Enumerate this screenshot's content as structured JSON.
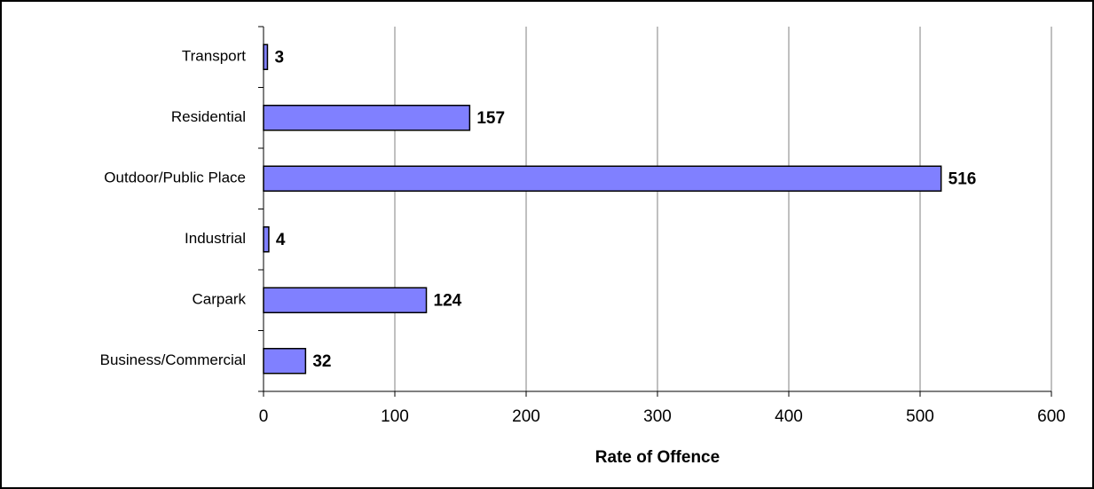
{
  "chart_data": {
    "type": "barh",
    "x_label": "Rate of Offence",
    "categories": [
      "Transport",
      "Residential",
      "Outdoor/Public Place",
      "Industrial",
      "Carpark",
      "Business/Commercial"
    ],
    "values": [
      3,
      157,
      516,
      4,
      124,
      32
    ],
    "color": "#8080ff",
    "xlim": [
      0,
      600
    ],
    "xticks": [
      0,
      100,
      200,
      300,
      400,
      500,
      600
    ],
    "grid": true
  }
}
